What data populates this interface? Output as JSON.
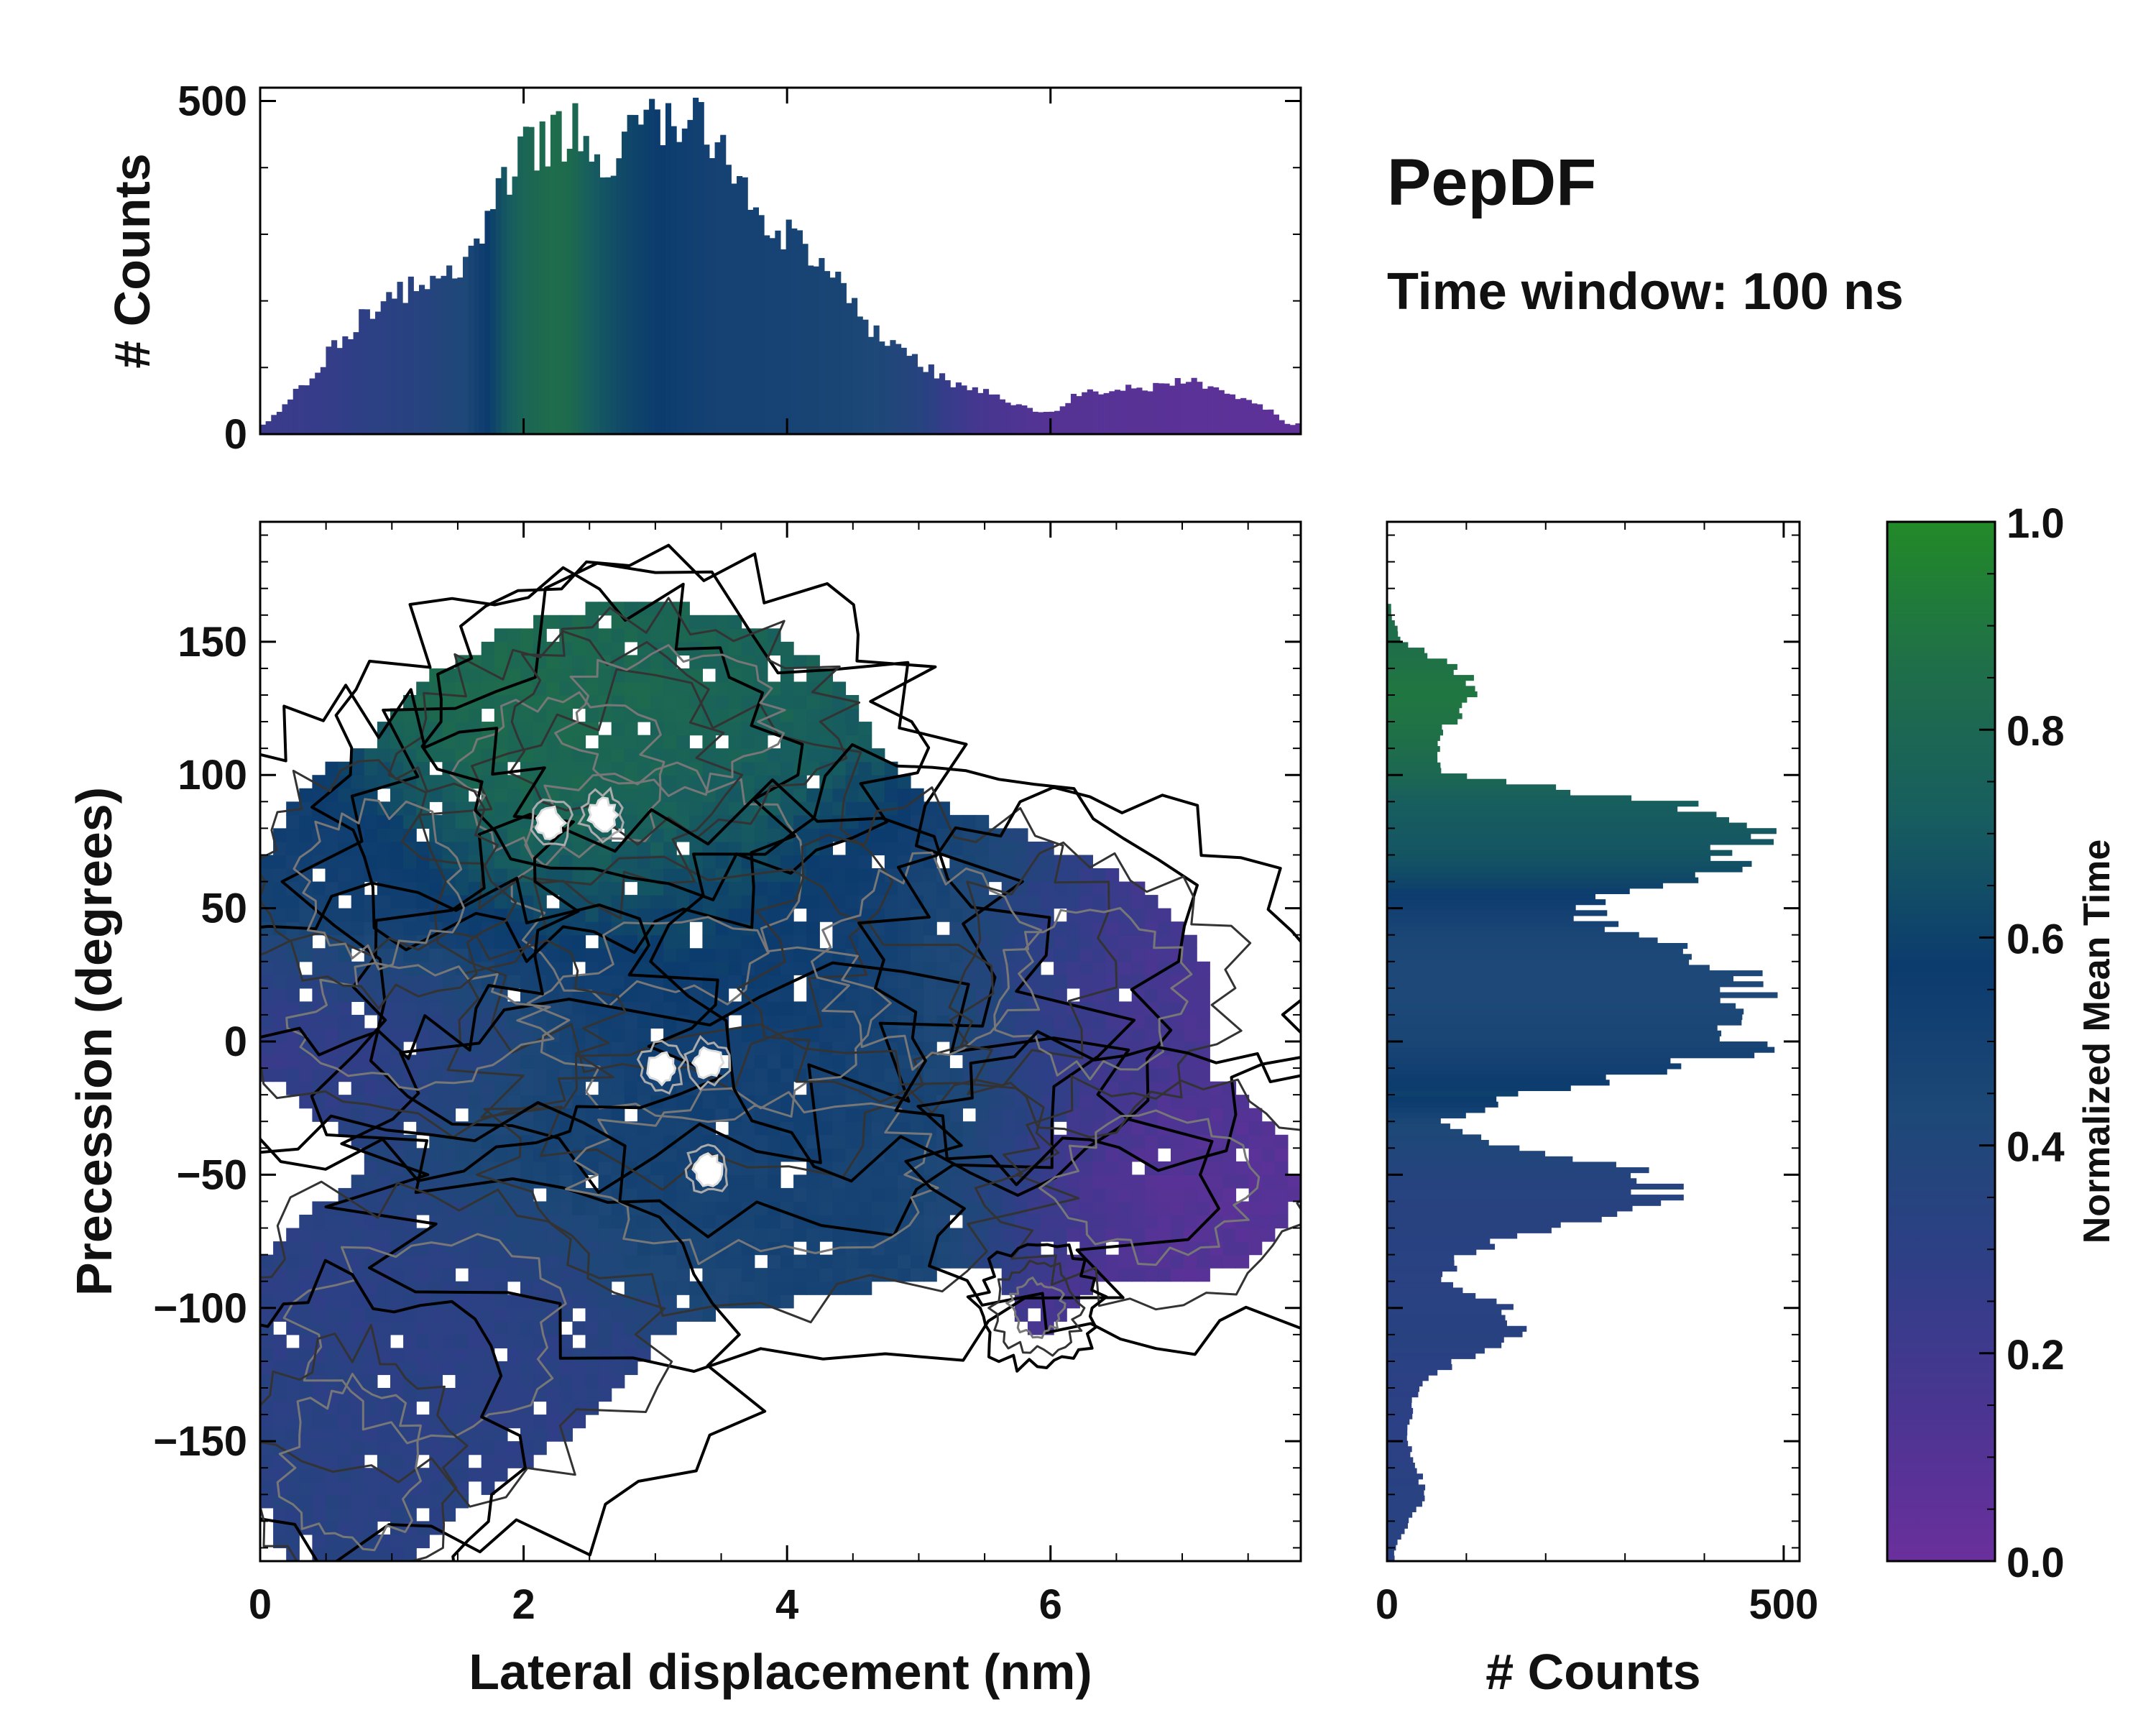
{
  "title": "PepDF",
  "subtitle": "Time window: 100 ns",
  "chart_data": [
    {
      "type": "heatmap",
      "name": "main",
      "xlabel": "Lateral displacement (nm)",
      "ylabel": "Precession (degrees)",
      "xlim": [
        0,
        7.9
      ],
      "ylim": [
        -195,
        195
      ],
      "xticks": [
        0,
        2,
        4,
        6
      ],
      "yticks": [
        150,
        100,
        50,
        0,
        -50,
        -100,
        -150
      ],
      "ytick_labels": [
        "150",
        "100",
        "50",
        "0",
        "−50",
        "−100",
        "−150"
      ],
      "color_value": "Normalized Mean Time",
      "regions": [
        {
          "x": 3.0,
          "y": 60,
          "sx": 1.05,
          "sy": 45,
          "t": 0.66,
          "w": 1.0
        },
        {
          "x": 2.3,
          "y": 100,
          "sx": 0.75,
          "sy": 30,
          "t": 0.9,
          "w": 0.8
        },
        {
          "x": 3.1,
          "y": 120,
          "sx": 0.8,
          "sy": 25,
          "t": 0.8,
          "w": 0.7
        },
        {
          "x": 3.4,
          "y": 8,
          "sx": 1.2,
          "sy": 35,
          "t": 0.5,
          "w": 1.0
        },
        {
          "x": 3.8,
          "y": -50,
          "sx": 1.3,
          "sy": 30,
          "t": 0.48,
          "w": 0.9
        },
        {
          "x": 1.2,
          "y": 5,
          "sx": 0.9,
          "sy": 22,
          "t": 0.22,
          "w": 0.8
        },
        {
          "x": 1.3,
          "y": -110,
          "sx": 1.0,
          "sy": 35,
          "t": 0.3,
          "w": 0.85
        },
        {
          "x": 0.7,
          "y": -160,
          "sx": 0.5,
          "sy": 30,
          "t": 0.33,
          "w": 0.7
        },
        {
          "x": 0.9,
          "y": 60,
          "sx": 0.6,
          "sy": 28,
          "t": 0.5,
          "w": 0.7
        },
        {
          "x": 5.1,
          "y": 30,
          "sx": 0.8,
          "sy": 35,
          "t": 0.45,
          "w": 0.6
        },
        {
          "x": 6.3,
          "y": 20,
          "sx": 0.7,
          "sy": 30,
          "t": 0.12,
          "w": 0.55
        },
        {
          "x": 6.8,
          "y": -55,
          "sx": 0.75,
          "sy": 25,
          "t": 0.08,
          "w": 0.75
        },
        {
          "x": 5.9,
          "y": -100,
          "sx": 0.2,
          "sy": 10,
          "t": 0.12,
          "w": 0.3
        }
      ],
      "contour_peaks": [
        {
          "x": 2.2,
          "y": 82
        },
        {
          "x": 2.6,
          "y": 85
        },
        {
          "x": 3.05,
          "y": -10
        },
        {
          "x": 3.4,
          "y": -8
        },
        {
          "x": 3.4,
          "y": -48
        }
      ]
    },
    {
      "type": "bar",
      "name": "top-marginal",
      "xlabel": "",
      "ylabel": "# Counts",
      "xlim": [
        0,
        7.9
      ],
      "ylim": [
        0,
        520
      ],
      "yticks": [
        0,
        500
      ],
      "x": [
        0.05,
        0.35,
        0.65,
        0.85,
        1.05,
        1.25,
        1.35,
        1.55,
        1.7,
        1.85,
        2.0,
        2.2,
        2.35,
        2.5,
        2.65,
        2.8,
        3.0,
        3.15,
        3.3,
        3.45,
        3.6,
        3.8,
        4.0,
        4.2,
        4.4,
        4.6,
        4.8,
        5.0,
        5.2,
        5.4,
        5.6,
        5.8,
        6.0,
        6.2,
        6.4,
        6.6,
        6.8,
        7.0,
        7.2,
        7.4,
        7.6,
        7.8
      ],
      "values": [
        15,
        80,
        150,
        190,
        220,
        210,
        240,
        250,
        300,
        370,
        420,
        440,
        460,
        430,
        400,
        450,
        470,
        470,
        460,
        450,
        400,
        330,
        300,
        260,
        220,
        160,
        140,
        110,
        80,
        70,
        55,
        40,
        30,
        60,
        65,
        70,
        70,
        80,
        75,
        55,
        45,
        15
      ],
      "color_t": [
        0.22,
        0.24,
        0.27,
        0.3,
        0.33,
        0.35,
        0.38,
        0.42,
        0.55,
        0.68,
        0.78,
        0.85,
        0.83,
        0.72,
        0.66,
        0.62,
        0.58,
        0.55,
        0.52,
        0.5,
        0.5,
        0.49,
        0.48,
        0.47,
        0.46,
        0.44,
        0.4,
        0.35,
        0.25,
        0.18,
        0.15,
        0.12,
        0.1,
        0.1,
        0.09,
        0.08,
        0.08,
        0.07,
        0.07,
        0.06,
        0.06,
        0.05
      ]
    },
    {
      "type": "bar",
      "orientation": "horizontal",
      "name": "right-marginal",
      "xlabel": "# Counts",
      "xlim": [
        0,
        520
      ],
      "xticks": [
        0,
        500
      ],
      "ylim": [
        -195,
        195
      ],
      "y": [
        160,
        150,
        140,
        130,
        120,
        110,
        100,
        90,
        80,
        70,
        60,
        50,
        40,
        30,
        20,
        10,
        0,
        -10,
        -20,
        -30,
        -40,
        -50,
        -60,
        -70,
        -80,
        -90,
        -100,
        -110,
        -120,
        -130,
        -140,
        -150,
        -160,
        -170,
        -180,
        -190
      ],
      "values": [
        5,
        20,
        90,
        120,
        80,
        60,
        80,
        350,
        440,
        470,
        350,
        240,
        300,
        420,
        460,
        400,
        480,
        360,
        170,
        70,
        150,
        330,
        360,
        200,
        90,
        70,
        150,
        180,
        90,
        40,
        30,
        25,
        40,
        45,
        30,
        10
      ],
      "color_t": [
        0.85,
        0.85,
        0.88,
        0.9,
        0.88,
        0.85,
        0.8,
        0.72,
        0.7,
        0.68,
        0.62,
        0.52,
        0.45,
        0.43,
        0.42,
        0.44,
        0.46,
        0.52,
        0.6,
        0.45,
        0.4,
        0.36,
        0.34,
        0.34,
        0.33,
        0.32,
        0.33,
        0.34,
        0.32,
        0.31,
        0.3,
        0.3,
        0.32,
        0.33,
        0.33,
        0.33
      ]
    },
    {
      "type": "colorbar",
      "name": "colorbar",
      "label": "Normalized Mean Time",
      "range": [
        0,
        1
      ],
      "ticks": [
        0.0,
        0.2,
        0.4,
        0.6,
        0.8,
        1.0
      ],
      "tick_labels": [
        "0.0",
        "0.2",
        "0.4",
        "0.6",
        "0.8",
        "1.0"
      ],
      "colors": [
        "#6a2f9c",
        "#4b3592",
        "#2e3f86",
        "#1d4877",
        "#0c3b6e",
        "#175d5f",
        "#1f6e4a",
        "#228a28"
      ]
    }
  ]
}
